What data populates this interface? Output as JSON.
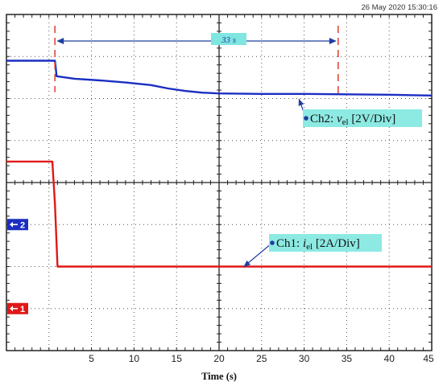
{
  "timestamp": "26 May 2020  15:30:16",
  "chart_data": {
    "type": "line",
    "title": "",
    "xlabel": "Time (s)",
    "ylabel": "",
    "xlim": [
      -5,
      45
    ],
    "ylim": [
      -4,
      4
    ],
    "x_ticks": [
      "5",
      "10",
      "15",
      "20",
      "25",
      "30",
      "35",
      "40",
      "45"
    ],
    "grid": true,
    "series": [
      {
        "name": "Ch2",
        "color": "#1a2ec2",
        "x": [
          -5,
          0.7,
          0.9,
          3,
          6,
          9,
          12,
          14,
          16,
          18,
          20,
          25,
          30,
          35,
          40,
          45
        ],
        "y": [
          2.9,
          2.9,
          2.53,
          2.47,
          2.43,
          2.38,
          2.32,
          2.24,
          2.18,
          2.14,
          2.12,
          2.11,
          2.11,
          2.1,
          2.09,
          2.07
        ]
      },
      {
        "name": "Ch1",
        "color": "#e01818",
        "x": [
          -5,
          0.4,
          0.7,
          1.0,
          45
        ],
        "y": [
          0.5,
          0.5,
          -0.5,
          -2.0,
          -2.0
        ]
      }
    ],
    "channel_markers": [
      {
        "label": "2",
        "y": -1.0,
        "color": "#1a2ec2"
      },
      {
        "label": "1",
        "y": -3.0,
        "color": "#e01818"
      }
    ],
    "annotations": {
      "duration": {
        "text": "33 s",
        "x_start": 0.7,
        "x_end": 34
      },
      "ch2": {
        "prefix": "Ch2: ",
        "var": "v",
        "sub": "el",
        "suffix": " [2V/Div]",
        "target_x": 29,
        "target_y": 2.05
      },
      "ch1": {
        "prefix": "Ch1: ",
        "var": "i",
        "sub": "el",
        "suffix": " [2A/Div]",
        "target_x": 22.5,
        "target_y": -1.95
      }
    }
  }
}
